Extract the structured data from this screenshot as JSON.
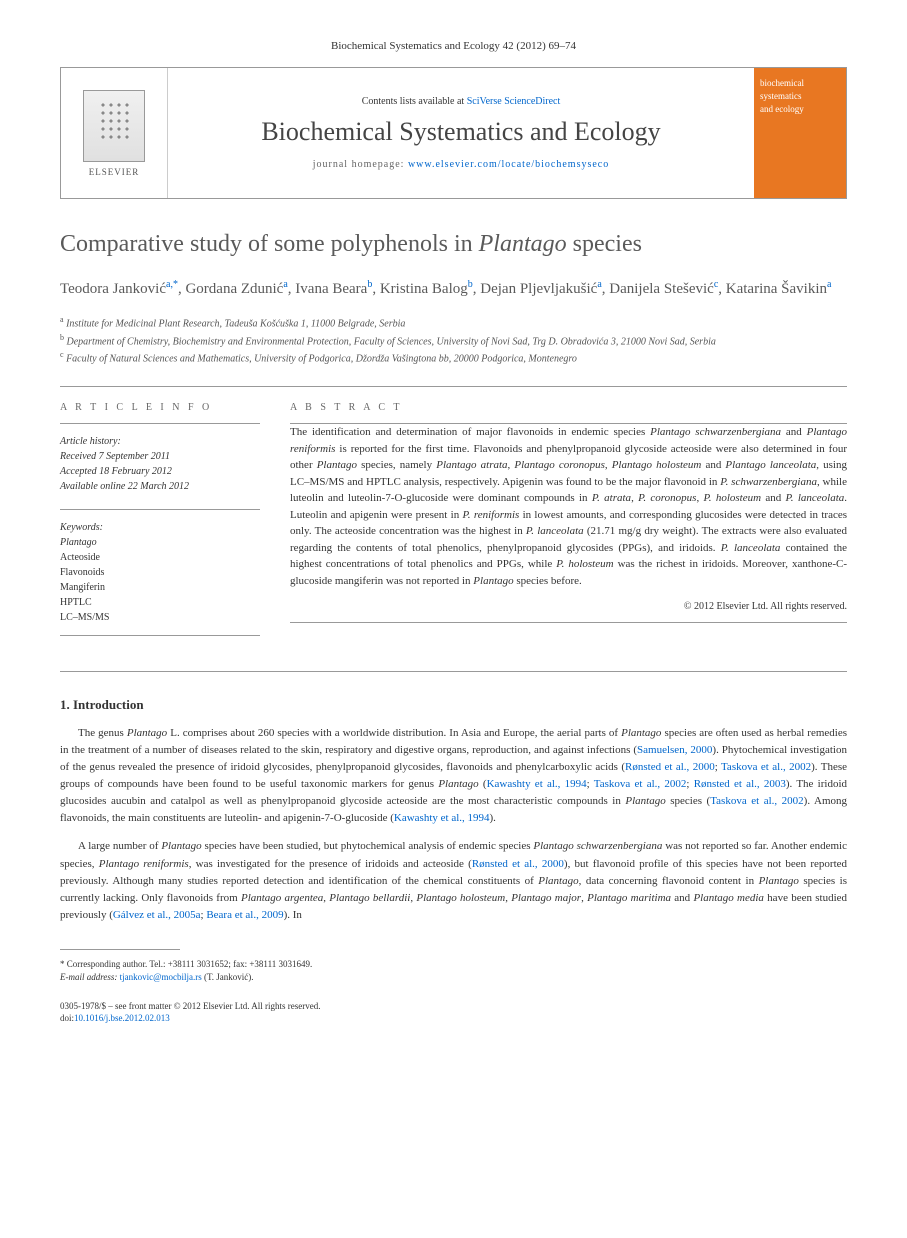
{
  "journal_ref": "Biochemical Systematics and Ecology 42 (2012) 69–74",
  "masthead": {
    "contents_prefix": "Contents lists available at ",
    "contents_link": "SciVerse ScienceDirect",
    "journal_name": "Biochemical Systematics and Ecology",
    "homepage_prefix": "journal homepage: ",
    "homepage_url": "www.elsevier.com/locate/biochemsyseco",
    "elsevier": "ELSEVIER",
    "cover_line1": "biochemical",
    "cover_line2": "systematics",
    "cover_line3": "and ecology"
  },
  "title_pre": "Comparative study of some polyphenols in ",
  "title_em": "Plantago",
  "title_post": " species",
  "authors_html": "Teodora Janković<sup>a,*</sup>, Gordana Zdunić<sup>a</sup>, Ivana Beara<sup>b</sup>, Kristina Balog<sup>b</sup>, Dejan Pljevljakušić<sup>a</sup>, Danijela Stešević<sup>c</sup>, Katarina Šavikin<sup>a</sup>",
  "affiliations": [
    {
      "sup": "a",
      "text": "Institute for Medicinal Plant Research, Tadeuša Košćuška 1, 11000 Belgrade, Serbia"
    },
    {
      "sup": "b",
      "text": "Department of Chemistry, Biochemistry and Environmental Protection, Faculty of Sciences, University of Novi Sad, Trg D. Obradovića 3, 21000 Novi Sad, Serbia"
    },
    {
      "sup": "c",
      "text": "Faculty of Natural Sciences and Mathematics, University of Podgorica, Džordža Vašingtona bb, 20000 Podgorica, Montenegro"
    }
  ],
  "article_info": {
    "label": "A R T I C L E   I N F O",
    "history_label": "Article history:",
    "received": "Received 7 September 2011",
    "accepted": "Accepted 18 February 2012",
    "online": "Available online 22 March 2012",
    "keywords_label": "Keywords:",
    "keywords": [
      "Plantago",
      "Acteoside",
      "Flavonoids",
      "Mangiferin",
      "HPTLC",
      "LC–MS/MS"
    ]
  },
  "abstract": {
    "label": "A B S T R A C T",
    "text": "The identification and determination of major flavonoids in endemic species Plantago schwarzenbergiana and Plantago reniformis is reported for the first time. Flavonoids and phenylpropanoid glycoside acteoside were also determined in four other Plantago species, namely Plantago atrata, Plantago coronopus, Plantago holosteum and Plantago lanceolata, using LC–MS/MS and HPTLC analysis, respectively. Apigenin was found to be the major flavonoid in P. schwarzenbergiana, while luteolin and luteolin-7-O-glucoside were dominant compounds in P. atrata, P. coronopus, P. holosteum and P. lanceolata. Luteolin and apigenin were present in P. reniformis in lowest amounts, and corresponding glucosides were detected in traces only. The acteoside concentration was the highest in P. lanceolata (21.71 mg/g dry weight). The extracts were also evaluated regarding the contents of total phenolics, phenylpropanoid glycosides (PPGs), and iridoids. P. lanceolata contained the highest concentrations of total phenolics and PPGs, while P. holosteum was the richest in iridoids. Moreover, xanthone-C-glucoside mangiferin was not reported in Plantago species before.",
    "copyright": "© 2012 Elsevier Ltd. All rights reserved."
  },
  "intro": {
    "heading": "1. Introduction",
    "p1_parts": [
      {
        "t": "The genus "
      },
      {
        "i": "Plantago"
      },
      {
        "t": " L. comprises about 260 species with a worldwide distribution. In Asia and Europe, the aerial parts of "
      },
      {
        "i": "Plantago"
      },
      {
        "t": " species are often used as herbal remedies in the treatment of a number of diseases related to the skin, respiratory and digestive organs, reproduction, and against infections ("
      },
      {
        "a": "Samuelsen, 2000"
      },
      {
        "t": "). Phytochemical investigation of the genus revealed the presence of iridoid glycosides, phenylpropanoid glycosides, flavonoids and phenylcarboxylic acids ("
      },
      {
        "a": "Rønsted et al., 2000"
      },
      {
        "t": "; "
      },
      {
        "a": "Taskova et al., 2002"
      },
      {
        "t": "). These groups of compounds have been found to be useful taxonomic markers for genus "
      },
      {
        "i": "Plantago"
      },
      {
        "t": " ("
      },
      {
        "a": "Kawashty et al., 1994"
      },
      {
        "t": "; "
      },
      {
        "a": "Taskova et al., 2002"
      },
      {
        "t": "; "
      },
      {
        "a": "Rønsted et al., 2003"
      },
      {
        "t": "). The iridoid glucosides aucubin and catalpol as well as phenylpropanoid glycoside acteoside are the most characteristic compounds in "
      },
      {
        "i": "Plantago"
      },
      {
        "t": " species ("
      },
      {
        "a": "Taskova et al., 2002"
      },
      {
        "t": "). Among flavonoids, the main constituents are luteolin- and apigenin-7-O-glucoside ("
      },
      {
        "a": "Kawashty et al., 1994"
      },
      {
        "t": ")."
      }
    ],
    "p2_parts": [
      {
        "t": "A large number of "
      },
      {
        "i": "Plantago"
      },
      {
        "t": " species have been studied, but phytochemical analysis of endemic species "
      },
      {
        "i": "Plantago schwarzenbergiana"
      },
      {
        "t": " was not reported so far. Another endemic species, "
      },
      {
        "i": "Plantago reniformis"
      },
      {
        "t": ", was investigated for the presence of iridoids and acteoside ("
      },
      {
        "a": "Rønsted et al., 2000"
      },
      {
        "t": "), but flavonoid profile of this species have not been reported previously. Although many studies reported detection and identification of the chemical constituents of "
      },
      {
        "i": "Plantago"
      },
      {
        "t": ", data concerning flavonoid content in "
      },
      {
        "i": "Plantago"
      },
      {
        "t": " species is currently lacking. Only flavonoids from "
      },
      {
        "i": "Plantago argentea"
      },
      {
        "t": ", "
      },
      {
        "i": "Plantago bellardii"
      },
      {
        "t": ", "
      },
      {
        "i": "Plantago holosteum"
      },
      {
        "t": ", "
      },
      {
        "i": "Plantago major"
      },
      {
        "t": ", "
      },
      {
        "i": "Plantago maritima"
      },
      {
        "t": " and "
      },
      {
        "i": "Plantago media"
      },
      {
        "t": " have been studied previously ("
      },
      {
        "a": "Gálvez et al., 2005a"
      },
      {
        "t": "; "
      },
      {
        "a": "Beara et al., 2009"
      },
      {
        "t": "). In"
      }
    ]
  },
  "footer": {
    "corr_label": "* Corresponding author. Tel.: +38111 3031652; fax: +38111 3031649.",
    "email_label": "E-mail address:",
    "email": "tjankovic@mocbilja.rs",
    "email_name": "(T. Janković).",
    "front_matter": "0305-1978/$ – see front matter © 2012 Elsevier Ltd. All rights reserved.",
    "doi_label": "doi:",
    "doi": "10.1016/j.bse.2012.02.013"
  },
  "colors": {
    "link": "#0066cc",
    "cover_bg": "#e87722",
    "text": "#333333",
    "rule": "#999999"
  }
}
